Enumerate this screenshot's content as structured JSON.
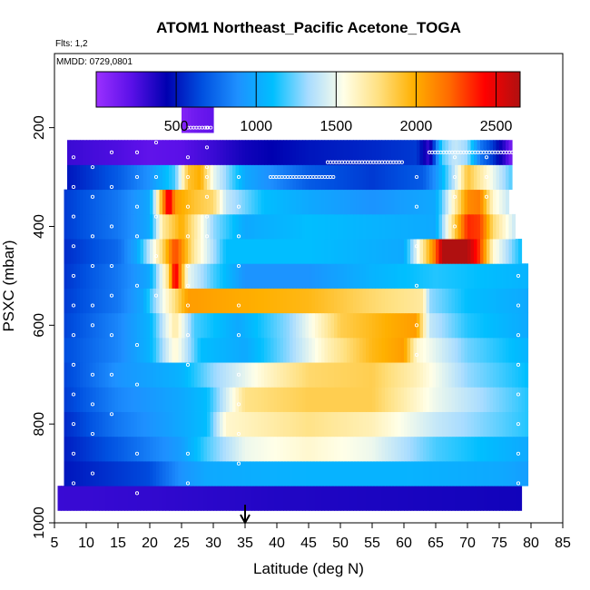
{
  "chart_data": {
    "type": "heatmap",
    "title": "ATOM1 Northeast_Pacific Acetone_TOGA",
    "flights_label": "Flts: 1,2",
    "dates_label": "MMDD: 0729,0801",
    "xlabel": "Latitude (deg N)",
    "ylabel": "PSXC (mbar)",
    "xlim": [
      5,
      85
    ],
    "ylim": [
      1000,
      50
    ],
    "y_reversed": true,
    "x_ticks": [
      "5",
      "10",
      "15",
      "20",
      "25",
      "30",
      "35",
      "40",
      "45",
      "50",
      "55",
      "60",
      "65",
      "70",
      "75",
      "80",
      "85"
    ],
    "y_ticks": [
      "200",
      "400",
      "600",
      "800",
      "1000"
    ],
    "colorbar": {
      "min": 0,
      "max": 2650,
      "ticks": [
        "500",
        "1000",
        "1500",
        "2000",
        "2500"
      ],
      "colors": [
        "#9b30ff",
        "#5a10e8",
        "#0000b0",
        "#0050e0",
        "#1e90ff",
        "#00bfff",
        "#a8dcff",
        "#ffffe8",
        "#ffe080",
        "#ffb000",
        "#ff6a00",
        "#ff0000",
        "#b01010"
      ]
    },
    "marker_latitude": 35,
    "levels": [
      {
        "p": 950,
        "x0": 5.5,
        "x1": 78.5,
        "values": [
          [
            5,
            300
          ],
          [
            20,
            320
          ],
          [
            40,
            360
          ],
          [
            60,
            380
          ],
          [
            78.5,
            400
          ]
        ]
      },
      {
        "p": 900,
        "x0": 6.5,
        "x1": 79.5,
        "values": [
          [
            6.5,
            500
          ],
          [
            20,
            650
          ],
          [
            25,
            900
          ],
          [
            29,
            1000
          ],
          [
            45,
            1050
          ],
          [
            60,
            1050
          ],
          [
            75,
            1000
          ],
          [
            79.5,
            950
          ]
        ]
      },
      {
        "p": 850,
        "x0": 6.5,
        "x1": 79.5,
        "values": [
          [
            6.5,
            520
          ],
          [
            15,
            700
          ],
          [
            25,
            950
          ],
          [
            29,
            1200
          ],
          [
            35,
            1500
          ],
          [
            45,
            1600
          ],
          [
            55,
            1500
          ],
          [
            65,
            1200
          ],
          [
            79.5,
            1000
          ]
        ]
      },
      {
        "p": 800,
        "x0": 6.5,
        "x1": 79.5,
        "values": [
          [
            6.5,
            550
          ],
          [
            15,
            800
          ],
          [
            25,
            1000
          ],
          [
            29,
            1100
          ],
          [
            32,
            1600
          ],
          [
            45,
            1750
          ],
          [
            55,
            1650
          ],
          [
            65,
            1400
          ],
          [
            79.5,
            1150
          ]
        ]
      },
      {
        "p": 750,
        "x0": 6.5,
        "x1": 79.5,
        "values": [
          [
            6.5,
            600
          ],
          [
            15,
            850
          ],
          [
            25,
            1000
          ],
          [
            29,
            1100
          ],
          [
            35,
            1750
          ],
          [
            45,
            1850
          ],
          [
            55,
            1850
          ],
          [
            65,
            1500
          ],
          [
            79.5,
            1150
          ]
        ]
      },
      {
        "p": 700,
        "x0": 6.5,
        "x1": 79.5,
        "values": [
          [
            6.5,
            620
          ],
          [
            15,
            900
          ],
          [
            25,
            1050
          ],
          [
            30,
            1300
          ],
          [
            38,
            1600
          ],
          [
            45,
            1800
          ],
          [
            55,
            1850
          ],
          [
            62,
            1650
          ],
          [
            70,
            1300
          ],
          [
            79.5,
            1100
          ]
        ]
      },
      {
        "p": 650,
        "x0": 6.5,
        "x1": 79.5,
        "values": [
          [
            6.5,
            650
          ],
          [
            15,
            850
          ],
          [
            20,
            1050
          ],
          [
            24,
            1600
          ],
          [
            28,
            1100
          ],
          [
            35,
            1000
          ],
          [
            42,
            1300
          ],
          [
            48,
            1650
          ],
          [
            55,
            1950
          ],
          [
            60,
            2050
          ],
          [
            62,
            1600
          ],
          [
            70,
            1250
          ],
          [
            79.5,
            1050
          ]
        ]
      },
      {
        "p": 600,
        "x0": 6.5,
        "x1": 79.5,
        "values": [
          [
            6.5,
            620
          ],
          [
            15,
            850
          ],
          [
            20,
            1050
          ],
          [
            24,
            1700
          ],
          [
            27,
            1200
          ],
          [
            34,
            1000
          ],
          [
            42,
            1300
          ],
          [
            50,
            1850
          ],
          [
            58,
            2000
          ],
          [
            62,
            2050
          ],
          [
            64,
            1400
          ],
          [
            70,
            1150
          ],
          [
            79.5,
            1000
          ]
        ]
      },
      {
        "p": 550,
        "x0": 6.5,
        "x1": 79.5,
        "values": [
          [
            6.5,
            600
          ],
          [
            15,
            800
          ],
          [
            19,
            1000
          ],
          [
            22,
            1500
          ],
          [
            26,
            2050
          ],
          [
            35,
            2000
          ],
          [
            45,
            1950
          ],
          [
            55,
            1800
          ],
          [
            63,
            1700
          ],
          [
            64,
            1300
          ],
          [
            70,
            1100
          ],
          [
            79.5,
            1000
          ]
        ]
      },
      {
        "p": 500,
        "x0": 6.5,
        "x1": 79.5,
        "values": [
          [
            6.5,
            580
          ],
          [
            15,
            800
          ],
          [
            20,
            1000
          ],
          [
            23,
            1800
          ],
          [
            24,
            2550
          ],
          [
            26,
            1500
          ],
          [
            30,
            1200
          ],
          [
            35,
            900
          ],
          [
            45,
            900
          ],
          [
            55,
            1050
          ],
          [
            65,
            1150
          ],
          [
            79.5,
            1050
          ]
        ]
      },
      {
        "p": 450,
        "x0": 6.5,
        "x1": 78.5,
        "values": [
          [
            6.5,
            560
          ],
          [
            15,
            750
          ],
          [
            18,
            1000
          ],
          [
            22,
            1800
          ],
          [
            24,
            2300
          ],
          [
            27,
            1700
          ],
          [
            32,
            1100
          ],
          [
            45,
            1100
          ],
          [
            60,
            1000
          ],
          [
            65,
            2200
          ],
          [
            66,
            2650
          ],
          [
            70,
            2650
          ],
          [
            72,
            2300
          ],
          [
            74,
            1600
          ],
          [
            78.5,
            1100
          ]
        ]
      },
      {
        "p": 400,
        "x0": 6.5,
        "x1": 77.5,
        "values": [
          [
            6.5,
            600
          ],
          [
            15,
            800
          ],
          [
            20,
            1000
          ],
          [
            22,
            1700
          ],
          [
            25,
            2000
          ],
          [
            30,
            1300
          ],
          [
            35,
            1000
          ],
          [
            45,
            1100
          ],
          [
            55,
            1050
          ],
          [
            65,
            1000
          ],
          [
            68,
            1850
          ],
          [
            70,
            2350
          ],
          [
            72,
            2300
          ],
          [
            74,
            1800
          ],
          [
            77.5,
            1400
          ]
        ]
      },
      {
        "p": 350,
        "x0": 6.5,
        "x1": 76.5,
        "values": [
          [
            6.5,
            600
          ],
          [
            15,
            800
          ],
          [
            20,
            1000
          ],
          [
            23,
            2550
          ],
          [
            24,
            2050
          ],
          [
            27,
            1900
          ],
          [
            30,
            1800
          ],
          [
            32,
            1400
          ],
          [
            38,
            1100
          ],
          [
            45,
            1000
          ],
          [
            55,
            900
          ],
          [
            65,
            1000
          ],
          [
            70,
            2100
          ],
          [
            72,
            2150
          ],
          [
            74,
            1600
          ],
          [
            76.5,
            1400
          ]
        ]
      },
      {
        "p": 300,
        "x0": 7.0,
        "x1": 77.0,
        "values": [
          [
            7,
            500
          ],
          [
            15,
            700
          ],
          [
            20,
            900
          ],
          [
            24,
            1200
          ],
          [
            26,
            1900
          ],
          [
            28,
            2000
          ],
          [
            30,
            1500
          ],
          [
            35,
            1000
          ],
          [
            45,
            700
          ],
          [
            55,
            600
          ],
          [
            63,
            700
          ],
          [
            65,
            900
          ],
          [
            68,
            1400
          ],
          [
            70,
            1900
          ],
          [
            73,
            1600
          ],
          [
            77,
            1200
          ]
        ]
      },
      {
        "p": 250,
        "x0": 7.0,
        "x1": 77.0,
        "values": [
          [
            7,
            300
          ],
          [
            15,
            250
          ],
          [
            20,
            200
          ],
          [
            25,
            220
          ],
          [
            30,
            300
          ],
          [
            35,
            400
          ],
          [
            45,
            500
          ],
          [
            55,
            550
          ],
          [
            62,
            600
          ],
          [
            64,
            300
          ],
          [
            66,
            1200
          ],
          [
            68,
            1400
          ],
          [
            70,
            1300
          ],
          [
            72,
            800
          ],
          [
            74,
            600
          ],
          [
            76,
            300
          ],
          [
            77,
            100
          ]
        ]
      },
      {
        "p": 180,
        "x0": 25.0,
        "x1": 30.0,
        "values": [
          [
            25,
            80
          ],
          [
            27,
            150
          ],
          [
            30,
            200
          ]
        ]
      }
    ],
    "marker_series": [
      {
        "lat": 8,
        "p": [
          260,
          320,
          380,
          440,
          500,
          560,
          620,
          680,
          740,
          800,
          860,
          920
        ]
      },
      {
        "lat": 11,
        "p": [
          280,
          340,
          420,
          480,
          560,
          600,
          700,
          760,
          820,
          900,
          980
        ]
      },
      {
        "lat": 14,
        "p": [
          250,
          320,
          400,
          480,
          540,
          620,
          700,
          780
        ]
      },
      {
        "lat": 18,
        "p": [
          250,
          300,
          360,
          420,
          520,
          640,
          720,
          860,
          940,
          980
        ]
      },
      {
        "lat": 21,
        "p": [
          230,
          300,
          380,
          460,
          540
        ]
      },
      {
        "lat": 26,
        "p": [
          260,
          300,
          360,
          420,
          480,
          520,
          560,
          620,
          680,
          860,
          920,
          980
        ]
      },
      {
        "lat": 29,
        "p": [
          200,
          240,
          280,
          300,
          340,
          380,
          420
        ]
      },
      {
        "lat": 34,
        "p": [
          300,
          360,
          420,
          480,
          560,
          620,
          700,
          760,
          820,
          880
        ]
      },
      {
        "lat": 62,
        "p": [
          300,
          360,
          440,
          520,
          600,
          660
        ]
      },
      {
        "lat": 68,
        "p": [
          220,
          260,
          300,
          340,
          400
        ]
      },
      {
        "lat": 73,
        "p": [
          260,
          300,
          340
        ]
      },
      {
        "lat": 78,
        "p": [
          500,
          560,
          620,
          680,
          740,
          800,
          860,
          920
        ]
      }
    ],
    "marker_runs": [
      {
        "p": 200,
        "lat_from": 26,
        "lat_to": 30
      },
      {
        "p": 300,
        "lat_from": 39,
        "lat_to": 49
      },
      {
        "p": 270,
        "lat_from": 48,
        "lat_to": 60
      },
      {
        "p": 250,
        "lat_from": 64,
        "lat_to": 78
      },
      {
        "p": 220,
        "lat_from": 65,
        "lat_to": 70
      }
    ],
    "grid": false,
    "legend": "colorbar-top"
  }
}
